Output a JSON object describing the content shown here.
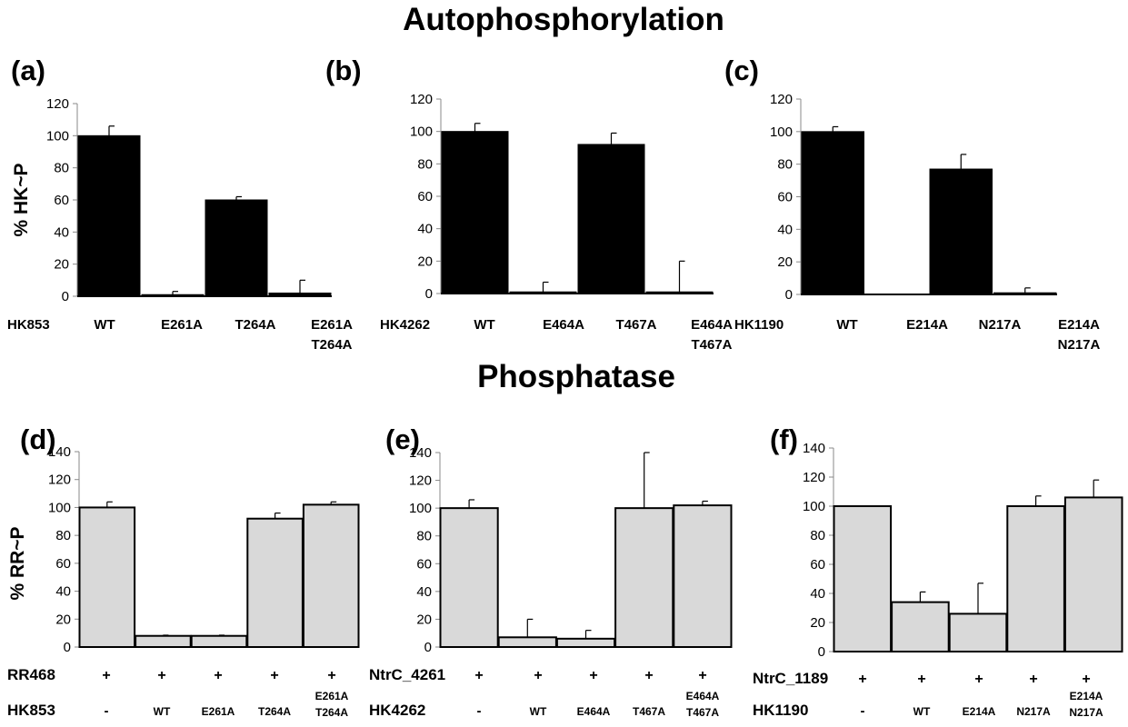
{
  "titles": {
    "top": "Autophosphorylation",
    "bottom": "Phosphatase"
  },
  "chart_data": [
    {
      "panel": "(a)",
      "type": "bar",
      "ylabel": "% HK~P",
      "ylim": [
        0,
        120
      ],
      "yticks": [
        0,
        20,
        40,
        60,
        80,
        100,
        120
      ],
      "row_label": "HK853",
      "categories": [
        "WT",
        "E261A",
        "T264A",
        "E261A T264A"
      ],
      "values": [
        100,
        1,
        60,
        2
      ],
      "errors": [
        6,
        2,
        2,
        8
      ],
      "bar_color": "#000000"
    },
    {
      "panel": "(b)",
      "type": "bar",
      "ylabel": "",
      "ylim": [
        0,
        120
      ],
      "yticks": [
        0,
        20,
        40,
        60,
        80,
        100,
        120
      ],
      "row_label": "HK4262",
      "categories": [
        "WT",
        "E464A",
        "T467A",
        "E464A T467A"
      ],
      "values": [
        100,
        1,
        92,
        1
      ],
      "errors": [
        5,
        6,
        7,
        19
      ],
      "bar_color": "#000000"
    },
    {
      "panel": "(c)",
      "type": "bar",
      "ylabel": "",
      "ylim": [
        0,
        120
      ],
      "yticks": [
        0,
        20,
        40,
        60,
        80,
        100,
        120
      ],
      "row_label": "HK1190",
      "categories": [
        "WT",
        "E214A",
        "N217A",
        "E214A N217A"
      ],
      "values": [
        100,
        0,
        77,
        1
      ],
      "errors": [
        3,
        0,
        9,
        3
      ],
      "bar_color": "#000000"
    },
    {
      "panel": "(d)",
      "type": "bar",
      "ylabel": "% RR~P",
      "ylim": [
        0,
        140
      ],
      "yticks": [
        0,
        20,
        40,
        60,
        80,
        100,
        120,
        140
      ],
      "row_label": "RR468",
      "row2_label": "HK853",
      "signs": [
        "+",
        "+",
        "+",
        "+",
        "+"
      ],
      "categories": [
        "-",
        "WT",
        "E261A",
        "T264A",
        "E261A T264A"
      ],
      "values": [
        100,
        8,
        8,
        92,
        102
      ],
      "errors": [
        4,
        0.5,
        0.5,
        4,
        2
      ],
      "bar_color": "#d9d9d9"
    },
    {
      "panel": "(e)",
      "type": "bar",
      "ylabel": "",
      "ylim": [
        0,
        140
      ],
      "yticks": [
        0,
        20,
        40,
        60,
        80,
        100,
        120,
        140
      ],
      "row_label": "NtrC_4261",
      "row2_label": "HK4262",
      "signs": [
        "+",
        "+",
        "+",
        "+",
        "+"
      ],
      "categories": [
        "-",
        "WT",
        "E464A",
        "T467A",
        "E464A T467A"
      ],
      "values": [
        100,
        7,
        6,
        100,
        102
      ],
      "errors": [
        6,
        13,
        6,
        40,
        3
      ],
      "bar_color": "#d9d9d9"
    },
    {
      "panel": "(f)",
      "type": "bar",
      "ylabel": "",
      "ylim": [
        0,
        140
      ],
      "yticks": [
        0,
        20,
        40,
        60,
        80,
        100,
        120,
        140
      ],
      "row_label": "NtrC_1189",
      "row2_label": "HK1190",
      "signs": [
        "+",
        "+",
        "+",
        "+",
        "+"
      ],
      "categories": [
        "-",
        "WT",
        "E214A",
        "N217A",
        "E214A N217A"
      ],
      "values": [
        100,
        34,
        26,
        100,
        106
      ],
      "errors": [
        0,
        7,
        21,
        7,
        12
      ],
      "bar_color": "#d9d9d9"
    }
  ]
}
